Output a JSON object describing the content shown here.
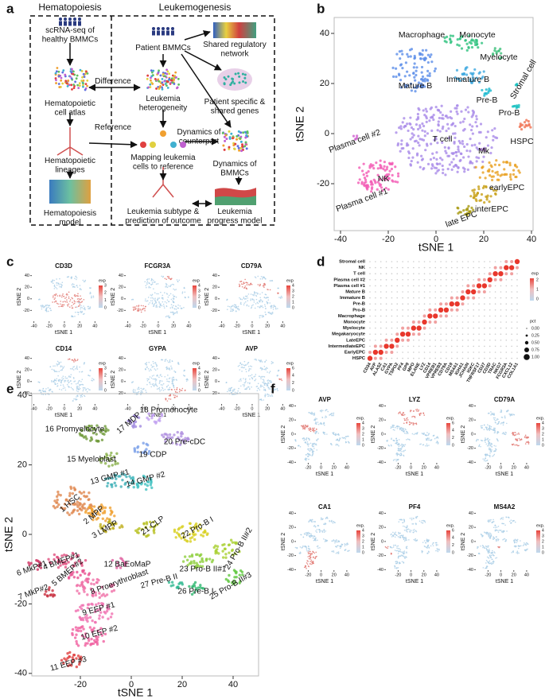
{
  "panel_a": {
    "label": "a",
    "headers": [
      "Hematopoiesis",
      "Leukemogenesis"
    ],
    "items": [
      [
        "scRNA-seq of",
        "healthy BMMCs"
      ],
      [
        "Hematopoietic",
        "cell atlas"
      ],
      [
        "Hematopoietic",
        "lineages"
      ],
      [
        "Hematopoiesis",
        "model"
      ],
      [
        "Patient BMMCs"
      ],
      [
        "Shared regulatory",
        "network"
      ],
      [
        "Leukemia",
        "heterogeneity"
      ],
      [
        "Patient specific &",
        "shared genes"
      ],
      [
        "Difference"
      ],
      [
        "Reference"
      ],
      [
        "Dynamics of",
        "counterpart"
      ],
      [
        "Mapping leukemia",
        "cells to reference"
      ],
      [
        "Dynamics of",
        "BMMCs"
      ],
      [
        "Leukemia subtype  &",
        "prediction of outcome"
      ],
      [
        "Leukemia",
        "progress model"
      ]
    ]
  },
  "panel_b": {
    "label": "b",
    "x_label": "tSNE 1",
    "y_label": "tSNE 2",
    "x_ticks": [
      -40,
      -20,
      0,
      20,
      40
    ],
    "y_ticks": [
      40,
      20,
      0,
      -20
    ],
    "clusters": [
      "Macrophage",
      "Monocyte",
      "Myelocyte",
      "Stromal cell",
      "Mature B",
      "Immature B",
      "Pre-B",
      "Pro-B",
      "Plasma cell #2",
      "T cell",
      "HSPC",
      "Mk",
      "NK",
      "earlyEPC",
      "Plasma cell #1",
      "interEPC",
      "late EPC"
    ]
  },
  "panel_c": {
    "label": "c",
    "x_label": "tSNE 1",
    "y_label": "tSNE 2",
    "legend_title": "exp",
    "x_ticks": [
      -40,
      -20,
      0,
      20,
      40
    ],
    "y_ticks": [
      40,
      20,
      0,
      -20
    ],
    "plots": [
      {
        "gene": "CD3D",
        "legend_ticks": [
          0,
          1,
          2,
          3
        ]
      },
      {
        "gene": "FCGR3A",
        "legend_ticks": [
          0,
          1,
          2,
          3,
          4
        ]
      },
      {
        "gene": "CD79A",
        "legend_ticks": [
          0,
          1,
          2,
          3,
          4
        ]
      },
      {
        "gene": "CD14",
        "legend_ticks": [
          0,
          1,
          2,
          3
        ]
      },
      {
        "gene": "GYPA",
        "legend_ticks": [
          0,
          1,
          2,
          3,
          4
        ]
      },
      {
        "gene": "AVP",
        "legend_ticks": [
          0,
          2,
          4,
          6
        ]
      }
    ]
  },
  "panel_d": {
    "label": "d",
    "rows": [
      "Stromal cell",
      "NK",
      "T cell",
      "Plasma cell #2",
      "Plasma cell #1",
      "Mature B",
      "Immature B",
      "Pre-B",
      "Pro-B",
      "Macrophage",
      "Monocyte",
      "Myelocyte",
      "Megakaryocyte",
      "LateEPC",
      "IntermediateEPC",
      "EarlyEPC",
      "HSPC"
    ],
    "genes": [
      "CD34",
      "AVP",
      "ALAS2",
      "CA1",
      "GYPA",
      "TSPO2",
      "PF4",
      "GP9",
      "MPO",
      "ELANE",
      "LYZ",
      "CD14",
      "VPREB1",
      "VPREB3",
      "CD79A",
      "CD19",
      "MS4A1",
      "IGHA1",
      "JCHAIN",
      "IGKC",
      "TNFRSF17",
      "CD27",
      "CD3D",
      "TRAC",
      "NKG7",
      "FCGR3A",
      "CXCL12",
      "COL1A1"
    ],
    "exp_title": "exp",
    "exp_ticks": [
      2,
      1,
      0
    ],
    "pct_title": "pct",
    "pct_ticks": [
      "0.00",
      "0.25",
      "0.50",
      "0.75",
      "1.00"
    ]
  },
  "panel_e": {
    "label": "e",
    "x_label": "tSNE 1",
    "y_label": "tSNE 2",
    "x_ticks": [
      -20,
      0,
      20,
      40
    ],
    "y_ticks": [
      40,
      20,
      0,
      -20,
      -40
    ],
    "clusters": [
      "16 Promyelocyte",
      "17 MDP",
      "18 Promonocyte",
      "20 Pre-cDC",
      "19 CDP",
      "15 Myeloblast",
      "13 GMP #1",
      "14 GMP #2",
      "1 HSC",
      "2 MPP",
      "3 LMPP",
      "21 CLP",
      "22 Pro-B I",
      "24 Pro-B II#2",
      "23 Pro-B II#1",
      "25 Pro-B II#3",
      "26 Pre-B I",
      "27 Pre-B II",
      "12 BaEoMaP",
      "4 BMEP#1",
      "6 MkP#1",
      "5 BMEP#2",
      "8 Proerythroblast",
      "7 MkP#2",
      "9 EEP #1",
      "10 EEP #2",
      "11 EEP #3"
    ]
  },
  "panel_f": {
    "label": "f",
    "x_label": "tSNE 1",
    "y_label": "tSNE 2",
    "legend_title": "exp.",
    "x_ticks": [
      -20,
      0,
      20,
      40
    ],
    "y_ticks": [
      40,
      20,
      0,
      -20,
      -40
    ],
    "plots": [
      {
        "gene": "AVP",
        "legend_ticks": [
          0,
          1,
          2,
          3,
          4
        ]
      },
      {
        "gene": "LYZ",
        "legend_ticks": [
          0,
          2,
          4,
          6
        ]
      },
      {
        "gene": "CD79A",
        "legend_ticks": [
          0,
          1,
          2,
          3,
          4
        ]
      },
      {
        "gene": "CA1",
        "legend_ticks": [
          0,
          1,
          2,
          3,
          4
        ]
      },
      {
        "gene": "PF4",
        "legend_ticks": [
          0,
          2,
          4,
          6
        ]
      },
      {
        "gene": "MS4A2",
        "legend_ticks": [
          0,
          1,
          2,
          3,
          4
        ]
      }
    ]
  }
}
